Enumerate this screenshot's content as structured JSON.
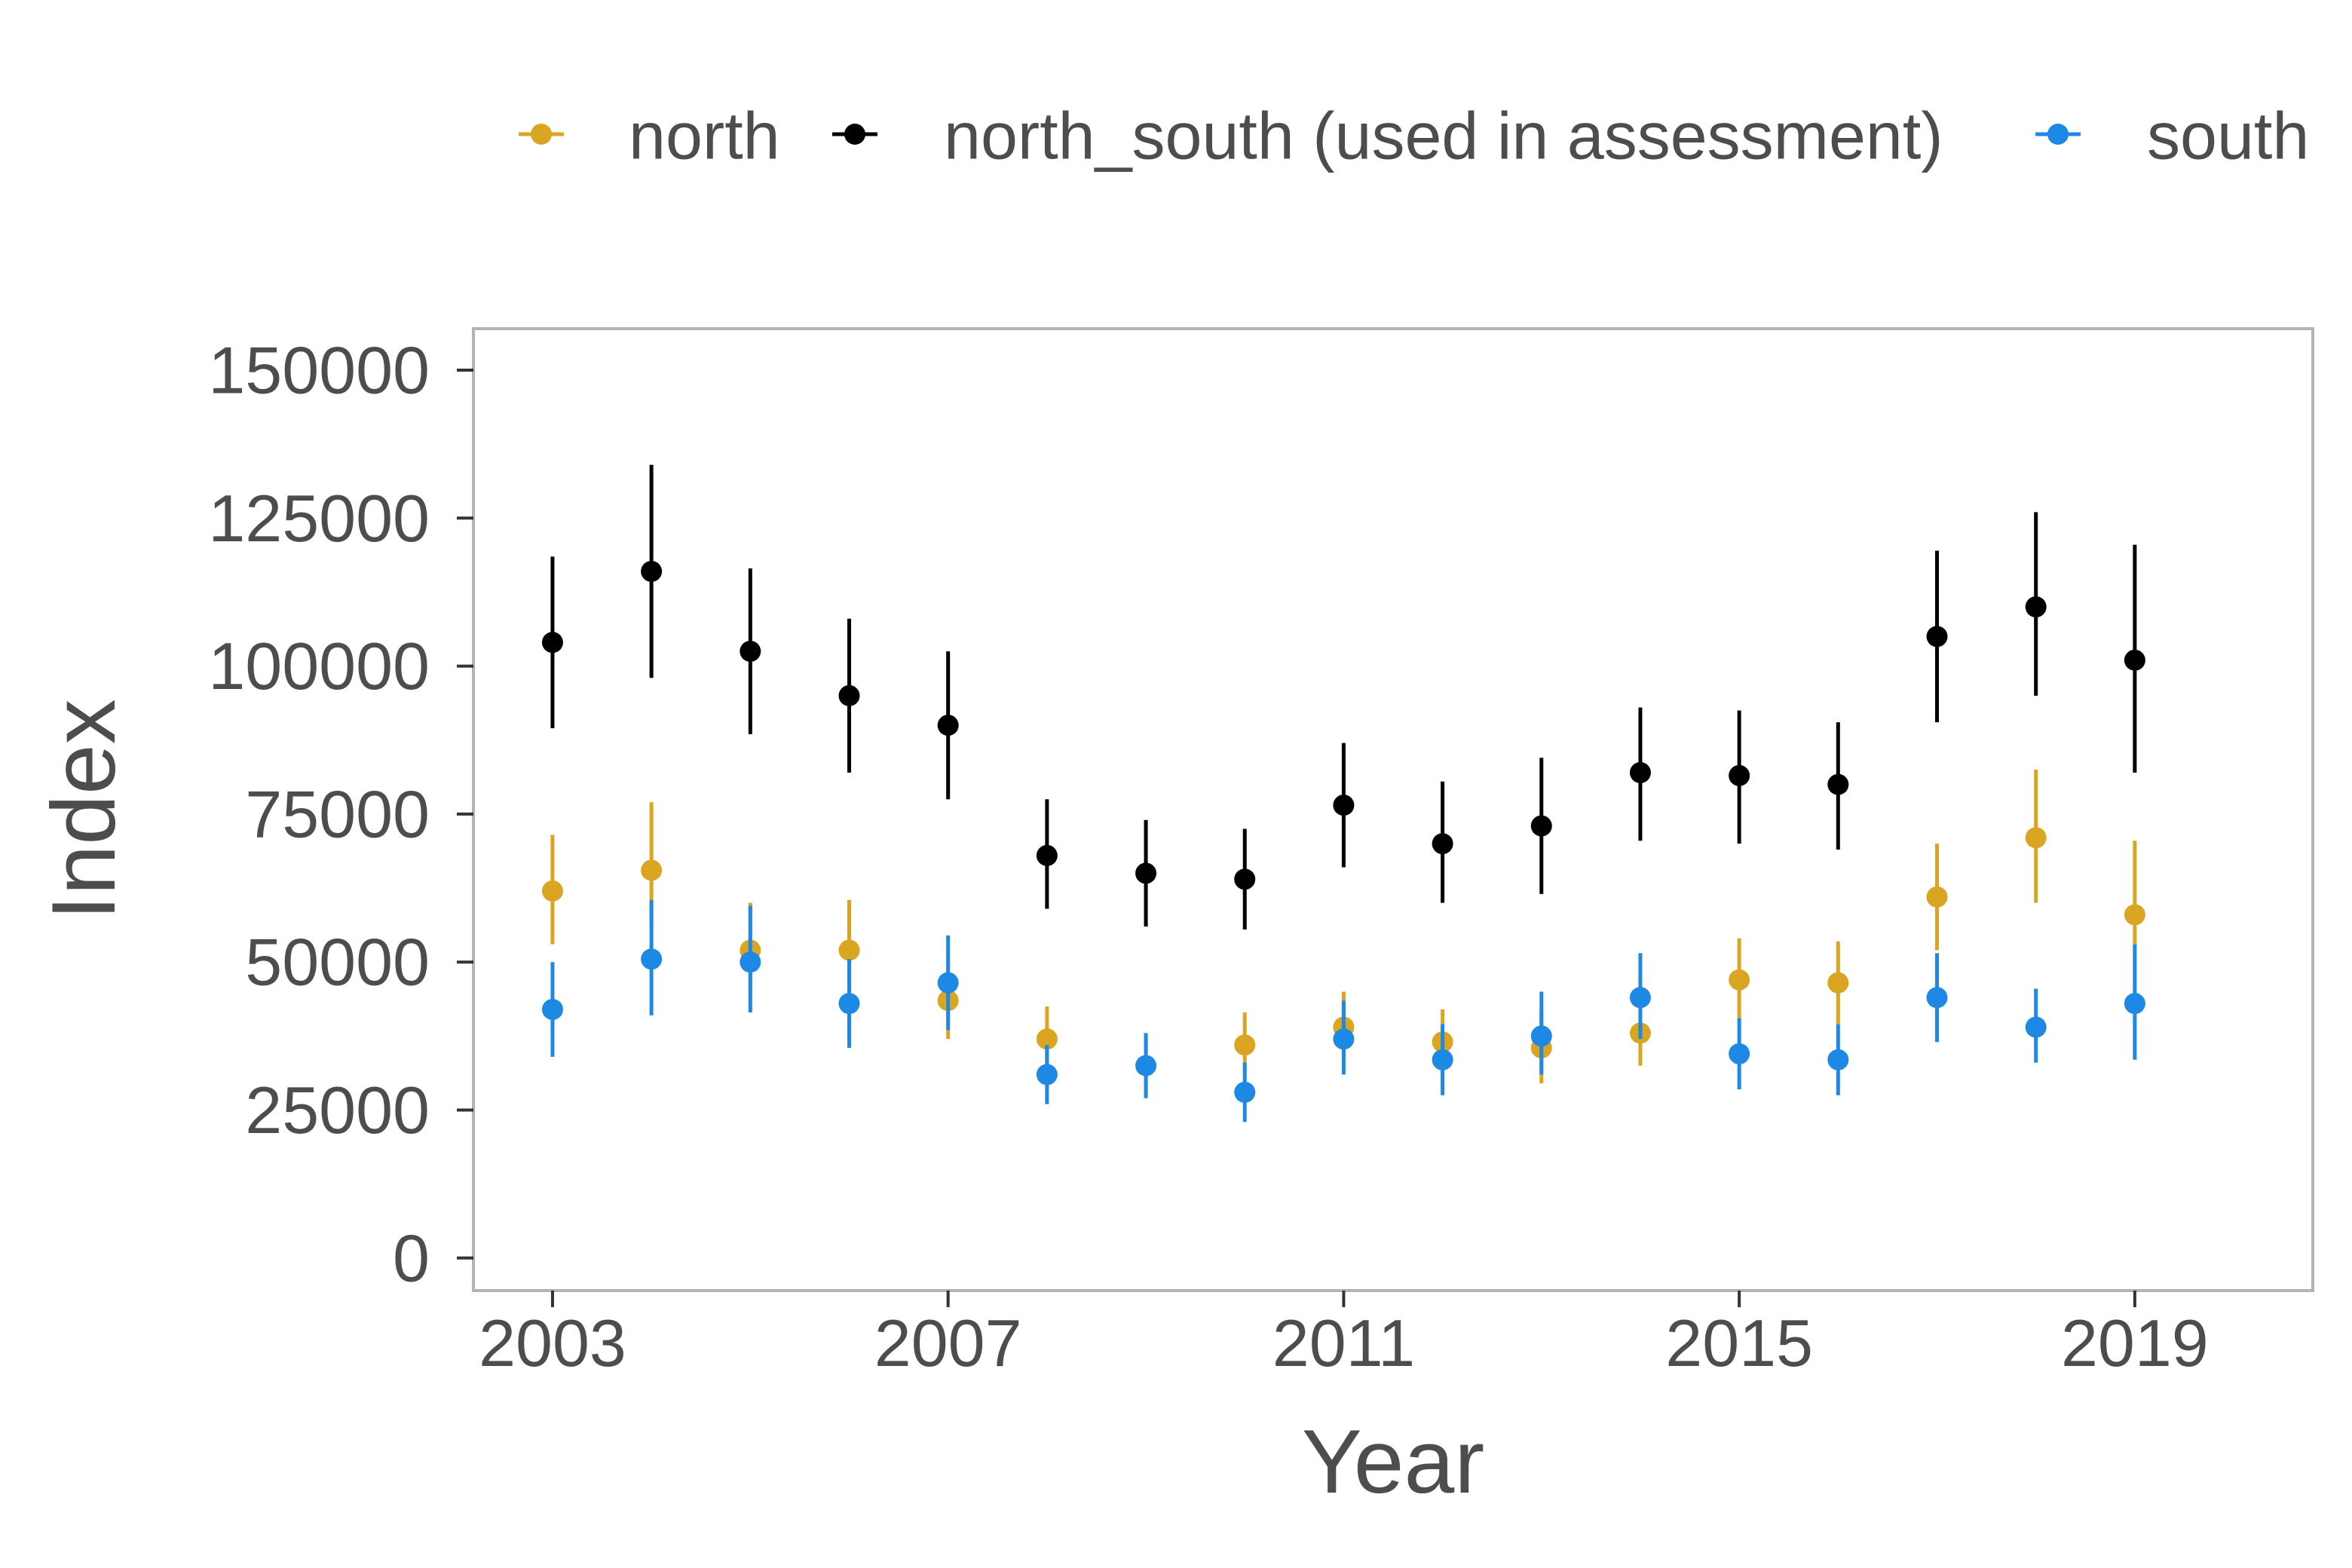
{
  "chart_data": {
    "type": "scatter",
    "xlabel": "Year",
    "ylabel": "Index",
    "xlim": [
      2002.2,
      2020.8
    ],
    "ylim": [
      -5500,
      157000
    ],
    "x_ticks": [
      2003,
      2007,
      2011,
      2015,
      2019
    ],
    "y_ticks": [
      0,
      25000,
      50000,
      75000,
      100000,
      125000,
      150000
    ],
    "grid": false,
    "legend_position": "top",
    "error_bars": true,
    "series": [
      {
        "name": "north",
        "color": "#DAA520",
        "x": [
          2003,
          2004,
          2005,
          2006,
          2007,
          2008,
          2010,
          2011,
          2012,
          2013,
          2014,
          2015,
          2016,
          2017,
          2018,
          2019
        ],
        "y": [
          62000,
          65500,
          52000,
          52000,
          43500,
          37000,
          36000,
          39000,
          36500,
          35500,
          38000,
          47000,
          46500,
          61000,
          71000,
          58000
        ],
        "lower": [
          53000,
          56000,
          45000,
          45000,
          37000,
          32000,
          31000,
          34000,
          31500,
          29500,
          32500,
          40000,
          39500,
          52000,
          60000,
          53000
        ],
        "upper": [
          71500,
          77000,
          60000,
          60500,
          51000,
          42500,
          41500,
          45000,
          42000,
          41500,
          44000,
          54000,
          53500,
          70000,
          82500,
          70500
        ]
      },
      {
        "name": "north_south (used in assessment)",
        "color": "#000000",
        "x": [
          2003,
          2004,
          2005,
          2006,
          2007,
          2008,
          2009,
          2010,
          2011,
          2012,
          2013,
          2014,
          2015,
          2016,
          2017,
          2018,
          2019
        ],
        "y": [
          104000,
          116000,
          102500,
          95000,
          90000,
          68000,
          65000,
          64000,
          76500,
          70000,
          73000,
          82000,
          81500,
          80000,
          105000,
          110000,
          101000
        ],
        "lower": [
          89500,
          98000,
          88500,
          82000,
          77500,
          59000,
          56000,
          55500,
          66000,
          60000,
          61500,
          70500,
          70000,
          69000,
          90500,
          95000,
          82000
        ],
        "upper": [
          118500,
          134000,
          116500,
          108000,
          102500,
          77500,
          74000,
          72500,
          87000,
          80500,
          84500,
          93000,
          92500,
          90500,
          119500,
          126000,
          120500
        ]
      },
      {
        "name": "south",
        "color": "#1E88E5",
        "x": [
          2003,
          2004,
          2005,
          2006,
          2007,
          2008,
          2009,
          2010,
          2011,
          2012,
          2013,
          2014,
          2015,
          2016,
          2017,
          2018,
          2019
        ],
        "y": [
          42000,
          50500,
          50000,
          43000,
          46500,
          31000,
          32500,
          28000,
          37000,
          33500,
          37500,
          44000,
          34500,
          33500,
          44000,
          39000,
          43000
        ],
        "lower": [
          34000,
          41000,
          41500,
          35500,
          38500,
          26000,
          27000,
          23000,
          31000,
          27500,
          31000,
          37000,
          28500,
          27500,
          36500,
          33000,
          33500
        ],
        "upper": [
          50000,
          60500,
          59500,
          50500,
          54500,
          36000,
          38000,
          33000,
          43500,
          39500,
          45000,
          51500,
          40500,
          39500,
          51500,
          45500,
          53000
        ]
      }
    ]
  }
}
